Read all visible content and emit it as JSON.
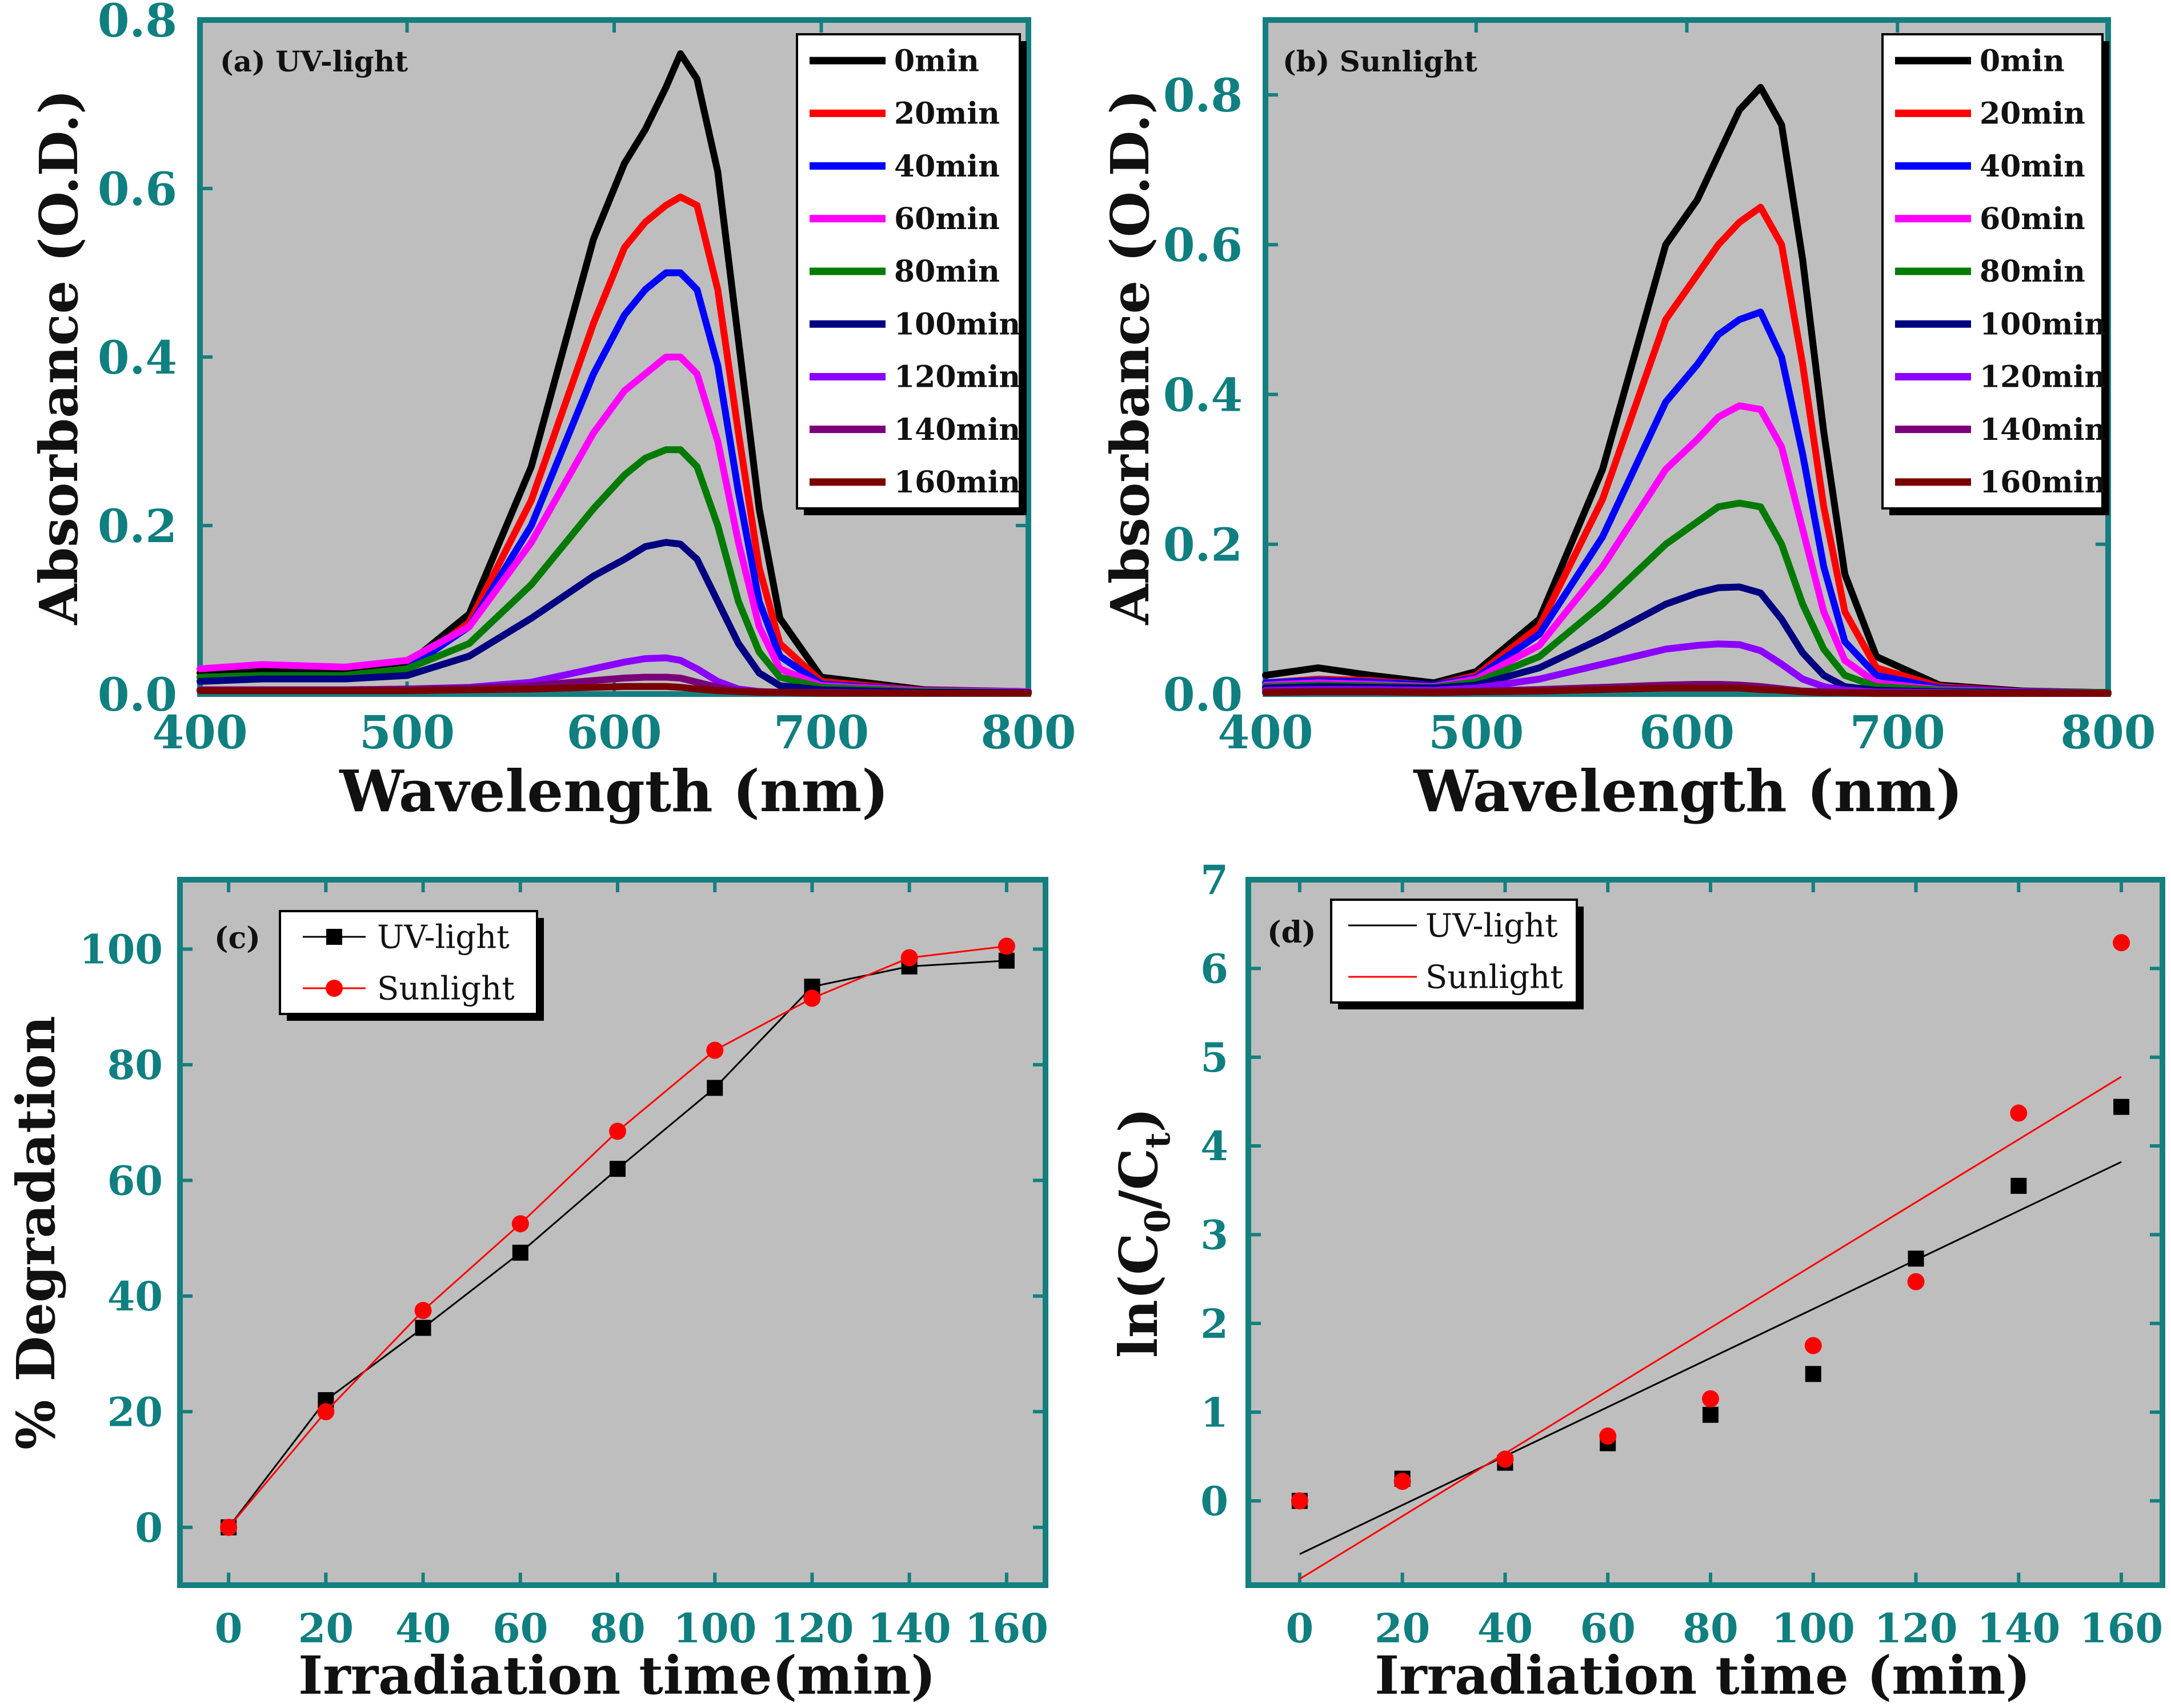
{
  "colors": {
    "plot_bg": "#bebebe",
    "frame": "#157f80",
    "tick_text": "#0f7f80",
    "uv": "#000000",
    "sun": "#ff0000",
    "series": [
      "#000000",
      "#ff0000",
      "#0000ff",
      "#ff00ff",
      "#007a00",
      "#000080",
      "#8b00ff",
      "#7a007a",
      "#7a0000"
    ]
  },
  "chart_data": [
    {
      "id": "a",
      "type": "line",
      "panel_label": "(a) UV-light",
      "xlabel": "Wavelength (nm)",
      "ylabel": "Absorbance (O.D.)",
      "xlim": [
        400,
        800
      ],
      "ylim": [
        0,
        0.8
      ],
      "xticks": [
        "400",
        "500",
        "600",
        "700",
        "800"
      ],
      "yticks": [
        "0.0",
        "0.2",
        "0.4",
        "0.6",
        "0.8"
      ],
      "legend_position": "top-right",
      "x": [
        400,
        430,
        470,
        500,
        530,
        560,
        590,
        605,
        615,
        625,
        632,
        640,
        650,
        660,
        670,
        680,
        700,
        750,
        800
      ],
      "series": [
        {
          "name": "0min",
          "values": [
            0.025,
            0.028,
            0.028,
            0.035,
            0.095,
            0.27,
            0.54,
            0.63,
            0.67,
            0.72,
            0.76,
            0.73,
            0.62,
            0.42,
            0.22,
            0.09,
            0.02,
            0.005,
            0.003
          ]
        },
        {
          "name": "20min",
          "values": [
            0.02,
            0.022,
            0.022,
            0.03,
            0.085,
            0.23,
            0.44,
            0.53,
            0.56,
            0.58,
            0.59,
            0.58,
            0.48,
            0.31,
            0.15,
            0.06,
            0.015,
            0.004,
            0.003
          ]
        },
        {
          "name": "40min",
          "values": [
            0.02,
            0.022,
            0.022,
            0.03,
            0.08,
            0.2,
            0.38,
            0.45,
            0.48,
            0.5,
            0.5,
            0.48,
            0.39,
            0.24,
            0.11,
            0.045,
            0.012,
            0.004,
            0.003
          ]
        },
        {
          "name": "60min",
          "values": [
            0.03,
            0.035,
            0.032,
            0.04,
            0.08,
            0.18,
            0.31,
            0.36,
            0.38,
            0.4,
            0.4,
            0.38,
            0.3,
            0.18,
            0.08,
            0.03,
            0.01,
            0.004,
            0.003
          ]
        },
        {
          "name": "80min",
          "values": [
            0.02,
            0.022,
            0.022,
            0.03,
            0.06,
            0.13,
            0.22,
            0.26,
            0.28,
            0.29,
            0.29,
            0.27,
            0.2,
            0.11,
            0.05,
            0.02,
            0.008,
            0.003,
            0.002
          ]
        },
        {
          "name": "100min",
          "values": [
            0.015,
            0.018,
            0.018,
            0.022,
            0.045,
            0.09,
            0.14,
            0.16,
            0.175,
            0.18,
            0.178,
            0.16,
            0.11,
            0.06,
            0.025,
            0.01,
            0.005,
            0.002,
            0.002
          ]
        },
        {
          "name": "120min",
          "values": [
            0.005,
            0.005,
            0.005,
            0.006,
            0.008,
            0.014,
            0.03,
            0.038,
            0.042,
            0.043,
            0.04,
            0.03,
            0.015,
            0.006,
            0.003,
            0.002,
            0.002,
            0.001,
            0.001
          ]
        },
        {
          "name": "140min",
          "values": [
            0.005,
            0.005,
            0.005,
            0.006,
            0.007,
            0.01,
            0.016,
            0.019,
            0.02,
            0.02,
            0.019,
            0.014,
            0.008,
            0.004,
            0.003,
            0.002,
            0.002,
            0.001,
            0.001
          ]
        },
        {
          "name": "160min",
          "values": [
            0.004,
            0.004,
            0.004,
            0.004,
            0.005,
            0.006,
            0.008,
            0.009,
            0.009,
            0.009,
            0.008,
            0.006,
            0.004,
            0.003,
            0.002,
            0.002,
            0.001,
            0.001,
            0.001
          ]
        }
      ]
    },
    {
      "id": "b",
      "type": "line",
      "panel_label": "(b) Sunlight",
      "xlabel": "Wavelength (nm)",
      "ylabel": "Absorbance (O.D.)",
      "xlim": [
        400,
        800
      ],
      "ylim": [
        0,
        0.9
      ],
      "xticks": [
        "400",
        "500",
        "600",
        "700",
        "800"
      ],
      "yticks": [
        "0.0",
        "0.2",
        "0.4",
        "0.6",
        "0.8"
      ],
      "legend_position": "top-right",
      "x": [
        400,
        425,
        450,
        480,
        500,
        530,
        560,
        590,
        605,
        615,
        625,
        635,
        645,
        655,
        665,
        675,
        690,
        720,
        760,
        800
      ],
      "series": [
        {
          "name": "0min",
          "values": [
            0.025,
            0.035,
            0.025,
            0.015,
            0.03,
            0.1,
            0.3,
            0.6,
            0.66,
            0.72,
            0.78,
            0.81,
            0.76,
            0.58,
            0.35,
            0.16,
            0.05,
            0.012,
            0.004,
            0.002
          ]
        },
        {
          "name": "20min",
          "values": [
            0.015,
            0.02,
            0.018,
            0.012,
            0.025,
            0.09,
            0.26,
            0.5,
            0.56,
            0.6,
            0.63,
            0.65,
            0.6,
            0.44,
            0.25,
            0.11,
            0.035,
            0.01,
            0.003,
            0.002
          ]
        },
        {
          "name": "40min",
          "values": [
            0.015,
            0.018,
            0.016,
            0.012,
            0.022,
            0.08,
            0.21,
            0.39,
            0.44,
            0.48,
            0.5,
            0.51,
            0.45,
            0.32,
            0.17,
            0.07,
            0.025,
            0.008,
            0.003,
            0.002
          ]
        },
        {
          "name": "60min",
          "values": [
            0.012,
            0.015,
            0.013,
            0.01,
            0.02,
            0.065,
            0.17,
            0.3,
            0.34,
            0.37,
            0.385,
            0.38,
            0.33,
            0.22,
            0.11,
            0.045,
            0.015,
            0.006,
            0.003,
            0.002
          ]
        },
        {
          "name": "80min",
          "values": [
            0.01,
            0.012,
            0.011,
            0.009,
            0.016,
            0.05,
            0.12,
            0.2,
            0.23,
            0.25,
            0.255,
            0.25,
            0.2,
            0.12,
            0.06,
            0.025,
            0.01,
            0.005,
            0.002,
            0.002
          ]
        },
        {
          "name": "100min",
          "values": [
            0.008,
            0.01,
            0.009,
            0.008,
            0.012,
            0.035,
            0.075,
            0.12,
            0.135,
            0.142,
            0.143,
            0.135,
            0.1,
            0.055,
            0.025,
            0.01,
            0.005,
            0.003,
            0.002,
            0.001
          ]
        },
        {
          "name": "120min",
          "values": [
            0.005,
            0.006,
            0.006,
            0.005,
            0.008,
            0.02,
            0.04,
            0.06,
            0.065,
            0.067,
            0.066,
            0.058,
            0.04,
            0.02,
            0.01,
            0.005,
            0.003,
            0.002,
            0.001,
            0.001
          ]
        },
        {
          "name": "140min",
          "values": [
            0.003,
            0.004,
            0.004,
            0.003,
            0.004,
            0.006,
            0.009,
            0.012,
            0.013,
            0.013,
            0.012,
            0.01,
            0.007,
            0.004,
            0.003,
            0.002,
            0.002,
            0.001,
            0.001,
            0.001
          ]
        },
        {
          "name": "160min",
          "values": [
            0.002,
            0.003,
            0.003,
            0.002,
            0.003,
            0.004,
            0.006,
            0.008,
            0.008,
            0.008,
            0.008,
            0.006,
            0.005,
            0.003,
            0.002,
            0.002,
            0.001,
            0.001,
            0.001,
            0.001
          ]
        }
      ]
    },
    {
      "id": "c",
      "type": "line",
      "panel_label": "(c)",
      "xlabel": "Irradiation time(min)",
      "ylabel": "% Degradation",
      "xlim": [
        -10,
        168
      ],
      "ylim": [
        -10,
        112
      ],
      "xticks": [
        "0",
        "20",
        "40",
        "60",
        "80",
        "100",
        "120",
        "140",
        "160"
      ],
      "yticks": [
        "0",
        "20",
        "40",
        "60",
        "80",
        "100"
      ],
      "legend_position": "top-left",
      "x": [
        0,
        20,
        40,
        60,
        80,
        100,
        120,
        140,
        160
      ],
      "series": [
        {
          "name": "UV-light",
          "marker": "square",
          "values": [
            0,
            22,
            34.5,
            47.5,
            62,
            76,
            93.5,
            97,
            98
          ]
        },
        {
          "name": "Sunlight",
          "marker": "circle",
          "values": [
            0,
            20,
            37.5,
            52.5,
            68.5,
            82.5,
            91.5,
            98.5,
            100.5
          ]
        }
      ]
    },
    {
      "id": "d",
      "type": "scatter",
      "panel_label": "(d)",
      "xlabel": "Irradiation time (min)",
      "ylabel_main": "ln(C",
      "ylabel_sub1": "0",
      "ylabel_mid": "/C",
      "ylabel_sub2": "t",
      "ylabel_end": ")",
      "xlim": [
        -10,
        168
      ],
      "ylim": [
        -0.95,
        7
      ],
      "xticks": [
        "0",
        "20",
        "40",
        "60",
        "80",
        "100",
        "120",
        "140",
        "160"
      ],
      "yticks": [
        "0",
        "1",
        "2",
        "3",
        "4",
        "5",
        "6",
        "7"
      ],
      "legend_position": "top-left",
      "x": [
        0,
        20,
        40,
        60,
        80,
        100,
        120,
        140,
        160
      ],
      "series": [
        {
          "name": "UV-light",
          "marker": "square",
          "values": [
            0,
            0.25,
            0.43,
            0.65,
            0.97,
            1.43,
            2.73,
            3.55,
            4.44
          ],
          "fit": {
            "x": [
              0,
              160
            ],
            "y": [
              -0.6,
              3.82
            ]
          }
        },
        {
          "name": "Sunlight",
          "marker": "circle",
          "values": [
            0,
            0.22,
            0.47,
            0.73,
            1.15,
            1.75,
            2.47,
            4.37,
            6.29
          ],
          "fit": {
            "x": [
              0,
              160
            ],
            "y": [
              -0.88,
              4.78
            ]
          }
        }
      ]
    }
  ]
}
